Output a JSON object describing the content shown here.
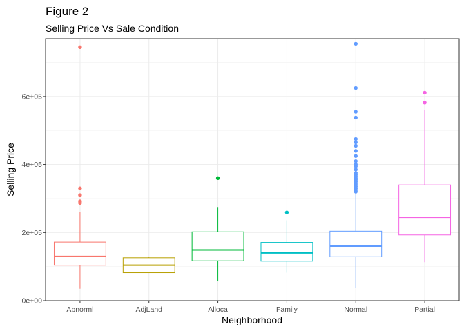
{
  "chart_data": {
    "type": "box",
    "title": "Figure 2",
    "subtitle": "Selling Price Vs Sale Condition",
    "xlabel": "Neighborhood",
    "ylabel": "Selling Price",
    "ylim": [
      0,
      770000
    ],
    "y_ticks": [
      {
        "value": 0,
        "label": "0e+00"
      },
      {
        "value": 200000,
        "label": "2e+05"
      },
      {
        "value": 400000,
        "label": "4e+05"
      },
      {
        "value": 600000,
        "label": "6e+05"
      }
    ],
    "grid": true,
    "categories": [
      "Abnorml",
      "AdjLand",
      "Alloca",
      "Family",
      "Normal",
      "Partial"
    ],
    "series": [
      {
        "category": "Abnorml",
        "color": "#F8766D",
        "whisker_low": 35000,
        "q1": 104000,
        "median": 130000,
        "q3": 172000,
        "whisker_high": 260000,
        "outliers": [
          745000,
          330000,
          310000,
          292000,
          287000
        ]
      },
      {
        "category": "AdjLand",
        "color": "#B79F00",
        "whisker_low": 82000,
        "q1": 82000,
        "median": 104000,
        "q3": 126000,
        "whisker_high": 127500,
        "outliers": []
      },
      {
        "category": "Alloca",
        "color": "#00BA38",
        "whisker_low": 57000,
        "q1": 117000,
        "median": 149000,
        "q3": 202000,
        "whisker_high": 275000,
        "outliers": [
          360000
        ]
      },
      {
        "category": "Family",
        "color": "#00BFC4",
        "whisker_low": 82000,
        "q1": 116000,
        "median": 140000,
        "q3": 171000,
        "whisker_high": 236000,
        "outliers": [
          259000
        ]
      },
      {
        "category": "Normal",
        "color": "#619CFF",
        "whisker_low": 37000,
        "q1": 129000,
        "median": 160000,
        "q3": 204000,
        "whisker_high": 318000,
        "outliers": [
          755000,
          625000,
          555000,
          538000,
          475000,
          465000,
          455000,
          440000,
          425000,
          410000,
          400000,
          395000,
          385000,
          375000,
          370000,
          365000,
          360000,
          355000,
          350000,
          345000,
          340000,
          335000,
          330000,
          325000,
          320000
        ]
      },
      {
        "category": "Partial",
        "color": "#F564E3",
        "whisker_low": 113000,
        "q1": 193000,
        "median": 245000,
        "q3": 340000,
        "whisker_high": 560000,
        "outliers": [
          611000,
          582000
        ]
      }
    ]
  }
}
